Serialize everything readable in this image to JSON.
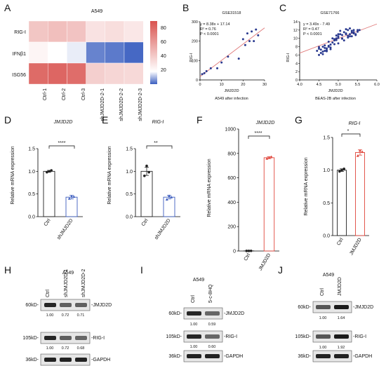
{
  "panels": {
    "A": {
      "letter": "A",
      "title": "A549",
      "rows": [
        "RIG-I",
        "IFNβ1",
        "ISG56"
      ],
      "cols": [
        "Ctrl-1",
        "Ctrl-2",
        "Ctrl-3",
        "shJMJD2D-2-1",
        "shJMJD2D-2-2",
        "shJMJD2D-2-3"
      ],
      "colorbar_ticks": [
        "80",
        "60",
        "40",
        "20"
      ]
    },
    "B": {
      "letter": "B",
      "title": "GSE31518",
      "stats": [
        "y = 8.38x + 17.14",
        "R² = 0.76",
        "P < 0.0001"
      ],
      "xlabel": "JMJD2D",
      "ylabel": "RIG-I",
      "caption": "A549 after infection"
    },
    "C": {
      "letter": "C",
      "title": "GSE71766",
      "stats": [
        "y = 3.49x - 7.49",
        "R² = 0.47",
        "P < 0.0001"
      ],
      "xlabel": "JMJD2D",
      "ylabel": "RIG-I",
      "caption": "BEAS-2B after infection"
    },
    "D": {
      "letter": "D",
      "gene": "JMJD2D",
      "sig": "****"
    },
    "E": {
      "letter": "E",
      "gene": "RIG-I",
      "sig": "**"
    },
    "F": {
      "letter": "F",
      "gene": "JMJD2D",
      "sig": "****"
    },
    "G": {
      "letter": "G",
      "gene": "RIG-I",
      "sig": "*"
    },
    "H": {
      "letter": "H",
      "cell": "A549",
      "lanes": [
        "Ctrl",
        "shJMJD2D-1",
        "shJMJD2D-2"
      ],
      "markers": [
        "60kD-",
        "105kD-",
        "36kD-"
      ],
      "bands": [
        "-JMJD2D",
        "-RIG-I",
        "-GAPDH"
      ],
      "quant": [
        [
          "1.00",
          "0.72",
          "0.71"
        ],
        [
          "1.00",
          "0.72",
          "0.68"
        ]
      ]
    },
    "I": {
      "letter": "I",
      "cell": "A549",
      "lanes": [
        "Ctrl",
        "5-c-8HQ"
      ],
      "markers": [
        "60kD-",
        "105kD-",
        "36kD-"
      ],
      "bands": [
        "-JMJD2D",
        "-RIG-I",
        "-GAPDH"
      ],
      "quant": [
        [
          "1.00",
          "0.59"
        ],
        [
          "1.00",
          "0.60"
        ]
      ]
    },
    "J": {
      "letter": "J",
      "cell": "A549",
      "lanes": [
        "Ctrl",
        "JMJD2D"
      ],
      "markers": [
        "60kD-",
        "105kD-",
        "36kD-"
      ],
      "bands": [
        "-JMJD2D",
        "-RIG-I",
        "-GAPDH"
      ],
      "quant": [
        [
          "1.00",
          "1.64"
        ],
        [
          "1.00",
          "1.92"
        ]
      ]
    }
  },
  "colors": {
    "heat_low": "#3b5fc0",
    "heat_mid": "#ffffff",
    "heat_high": "#d9534f",
    "reg_line": "#e07a7a",
    "scatter": "#2a3a8f",
    "ctrl_bar": "#222222",
    "kd_bar": "#3f5fbf",
    "oe_bar": "#e0463c"
  },
  "chart_data": [
    {
      "type": "heatmap",
      "panel": "A",
      "rows": [
        "RIG-I",
        "IFNβ1",
        "ISG56"
      ],
      "cols": [
        "Ctrl-1",
        "Ctrl-2",
        "Ctrl-3",
        "shJMJD2D-2-1",
        "shJMJD2D-2-2",
        "shJMJD2D-2-3"
      ],
      "values": [
        [
          42,
          45,
          43,
          30,
          32,
          28
        ],
        [
          22,
          18,
          16,
          4,
          3,
          1
        ],
        [
          80,
          82,
          79,
          38,
          35,
          34
        ]
      ],
      "range": [
        0,
        90
      ]
    },
    {
      "type": "scatter",
      "panel": "B",
      "xlim": [
        0,
        30
      ],
      "ylim": [
        0,
        300
      ],
      "xticks": [
        "0",
        "10",
        "20",
        "30"
      ],
      "yticks": [
        "0",
        "100",
        "200",
        "300"
      ],
      "x": [
        1,
        2,
        3,
        5,
        8,
        10,
        13,
        18,
        20,
        21,
        22,
        23,
        24,
        25,
        26,
        27
      ],
      "y": [
        30,
        35,
        45,
        60,
        60,
        90,
        120,
        110,
        210,
        180,
        240,
        200,
        250,
        200,
        260,
        230
      ],
      "fit": {
        "slope": 8.38,
        "intercept": 17.14
      }
    },
    {
      "type": "scatter",
      "panel": "C",
      "xlim": [
        4.0,
        6.0
      ],
      "ylim": [
        0,
        14
      ],
      "xticks": [
        "4.0",
        "4.5",
        "5.0",
        "5.5",
        "6.0"
      ],
      "yticks": [
        "0",
        "2",
        "4",
        "6",
        "8",
        "10",
        "12",
        "14"
      ],
      "x": [
        4.45,
        4.5,
        4.55,
        4.6,
        4.65,
        4.7,
        4.75,
        4.8,
        4.85,
        4.9,
        4.95,
        5.0,
        5.05,
        5.1,
        5.15,
        5.2,
        5.25,
        5.3,
        5.35,
        5.4,
        5.45,
        5.5,
        4.5,
        4.6,
        4.7,
        4.8,
        4.9,
        5.0,
        5.1,
        5.2,
        5.3,
        5.4,
        4.55,
        4.65,
        4.75,
        4.85,
        4.95,
        5.05,
        5.15,
        5.25,
        5.35,
        5.45,
        4.6,
        4.8,
        5.0,
        5.2,
        5.4,
        4.7,
        4.9,
        5.1,
        5.3,
        5.5,
        4.5,
        4.75,
        5.0,
        5.25,
        5.55,
        4.65,
        4.95,
        5.35
      ],
      "y": [
        7,
        7.5,
        6.5,
        8,
        7,
        7.2,
        8,
        7.8,
        9,
        9.5,
        10,
        10.5,
        11,
        10,
        11.5,
        11,
        12,
        11,
        10.5,
        12,
        11,
        12,
        6,
        6.8,
        7.6,
        8.5,
        9.8,
        11,
        10.8,
        11.2,
        10.5,
        11.5,
        7.3,
        7.7,
        8.2,
        10,
        10.7,
        11.8,
        9.5,
        10.2,
        11.8,
        10.8,
        6.2,
        7.4,
        8.8,
        12.2,
        11.2,
        6.9,
        8.6,
        9.9,
        12.4,
        11.6,
        7.9,
        9.2,
        10.1,
        10.6,
        12,
        8.3,
        9.6,
        11.4
      ],
      "fit": {
        "slope": 3.49,
        "intercept": -7.49
      }
    },
    {
      "type": "bar",
      "panel": "D",
      "ylabel": "Relative mRNA expression",
      "categories": [
        "Ctrl",
        "shJMJD2D"
      ],
      "values": [
        1.0,
        0.43
      ],
      "errors": [
        0.02,
        0.04
      ],
      "points": [
        [
          0.98,
          1.0,
          1.02
        ],
        [
          0.4,
          0.45,
          0.44
        ]
      ],
      "ylim": [
        0,
        1.5
      ],
      "yticks": [
        "0.0",
        "0.5",
        "1.0",
        "1.5"
      ]
    },
    {
      "type": "bar",
      "panel": "E",
      "ylabel": "Relative mRNA expression",
      "categories": [
        "Ctrl",
        "shJMJD2D"
      ],
      "values": [
        1.0,
        0.43
      ],
      "errors": [
        0.09,
        0.04
      ],
      "points": [
        [
          0.9,
          1.12,
          0.98
        ],
        [
          0.38,
          0.46,
          0.43
        ]
      ],
      "ylim": [
        0,
        1.5
      ],
      "yticks": [
        "0.0",
        "0.5",
        "1.0",
        "1.5"
      ]
    },
    {
      "type": "bar",
      "panel": "F",
      "ylabel": "Relative mRNA expression",
      "categories": [
        "Ctrl",
        "JMJD2D"
      ],
      "values": [
        1.0,
        765
      ],
      "errors": [
        0.1,
        8
      ],
      "points": [
        [
          0.9,
          1.0,
          1.1
        ],
        [
          758,
          765,
          772
        ]
      ],
      "ylim": [
        0,
        1000
      ],
      "yticks": [
        "0",
        "200",
        "400",
        "600",
        "800",
        "1000"
      ]
    },
    {
      "type": "bar",
      "panel": "G",
      "ylabel": "Relative mRNA expression",
      "categories": [
        "Ctrl",
        "JMJD2D"
      ],
      "values": [
        1.0,
        1.27
      ],
      "errors": [
        0.02,
        0.04
      ],
      "points": [
        [
          0.98,
          1.0,
          1.02
        ],
        [
          1.22,
          1.3,
          1.28
        ]
      ],
      "ylim": [
        0,
        1.5
      ],
      "yticks": [
        "0.0",
        "0.5",
        "1.0",
        "1.5"
      ]
    }
  ]
}
